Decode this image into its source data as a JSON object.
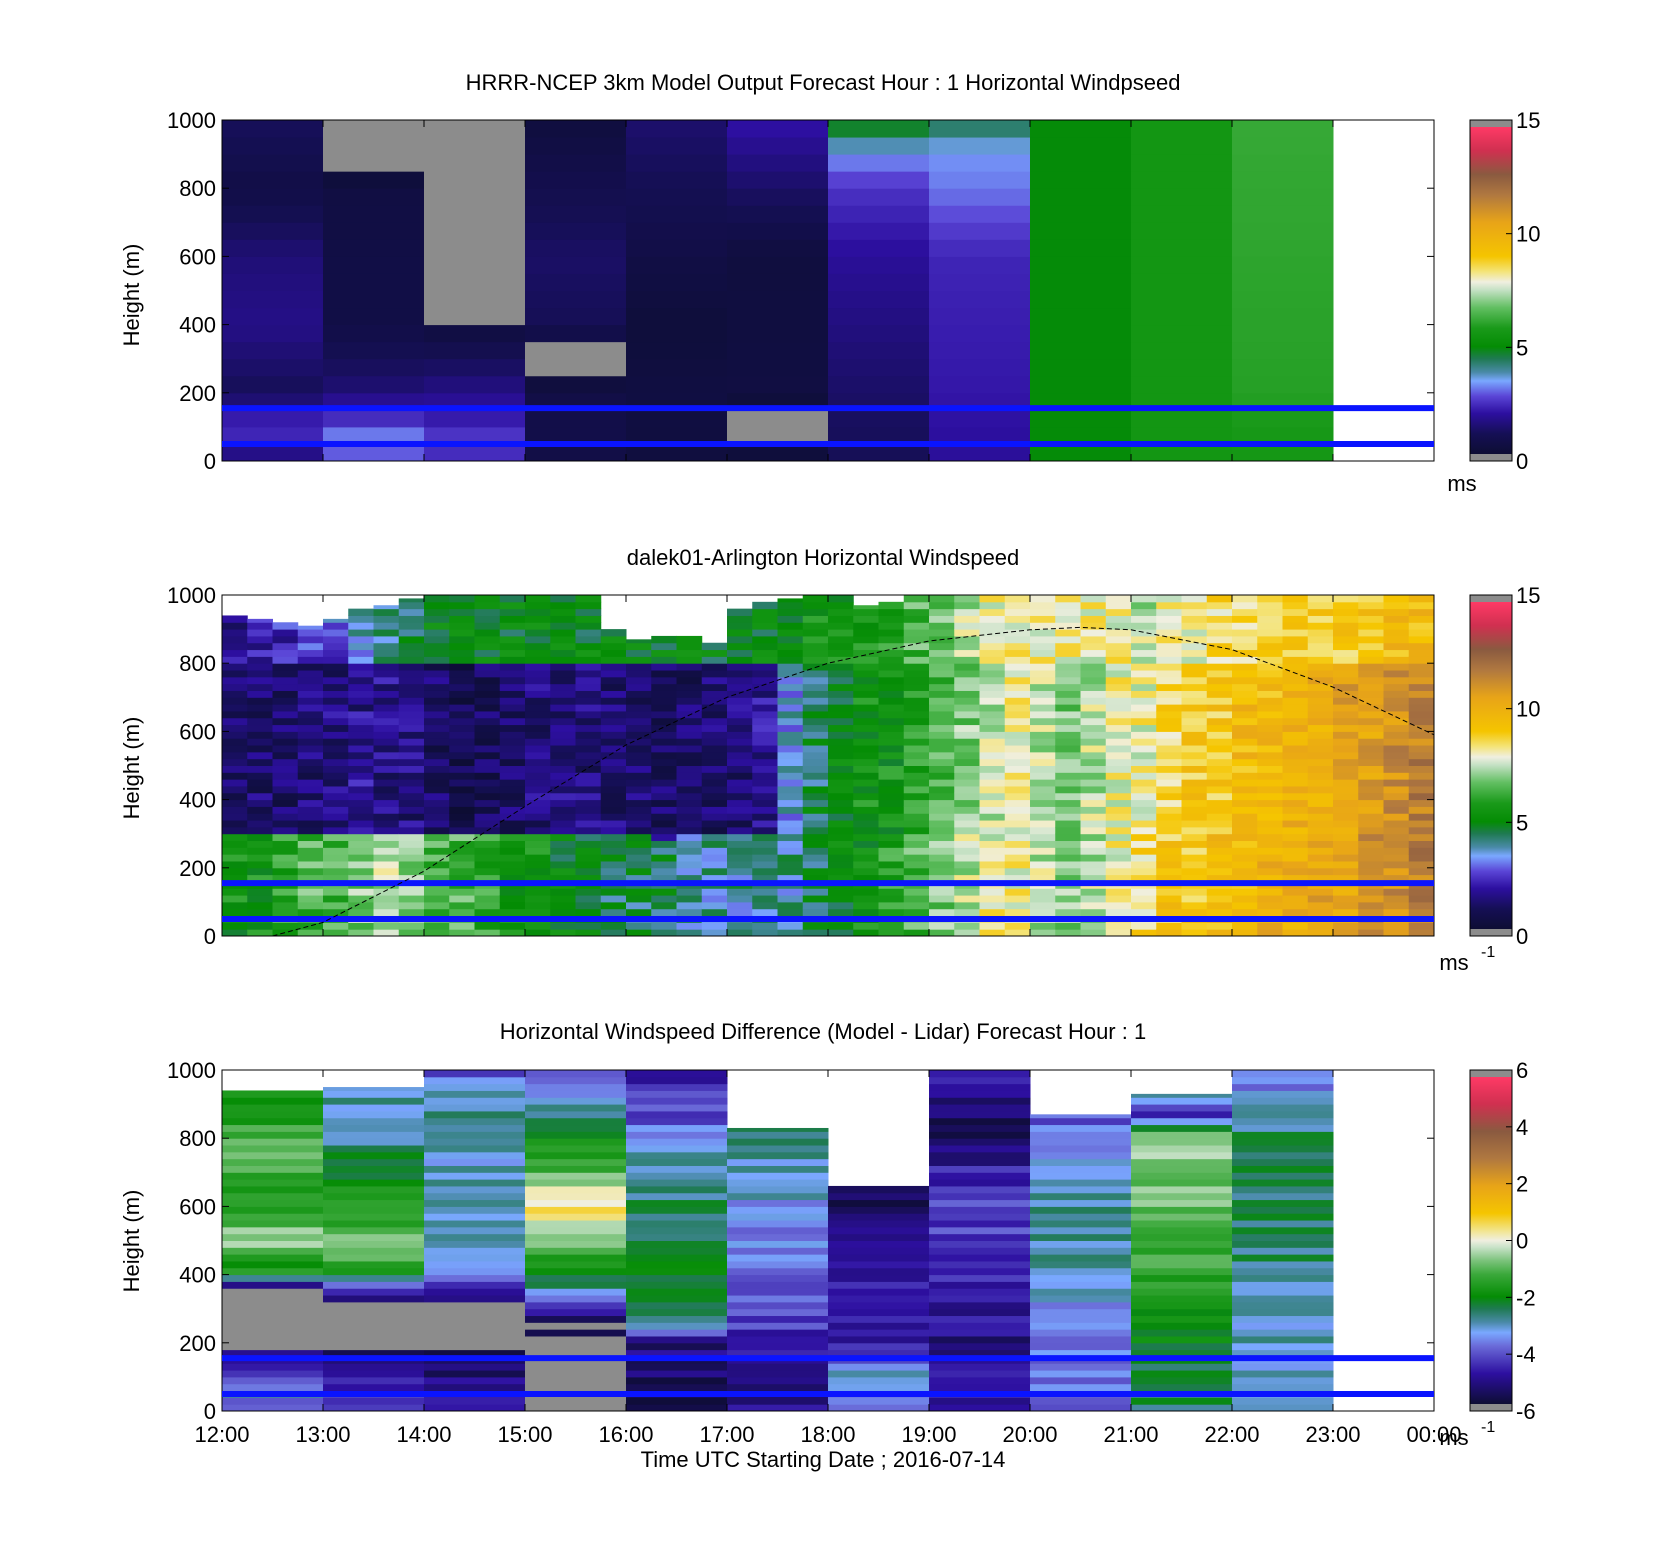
{
  "shared": {
    "ylabel": "Height (m)",
    "xlabel": "Time UTC  Starting Date ; 2016-07-14",
    "x_ticks": [
      "12:00",
      "13:00",
      "14:00",
      "15:00",
      "16:00",
      "17:00",
      "18:00",
      "19:00",
      "20:00",
      "21:00",
      "22:00",
      "23:00",
      "00:00"
    ],
    "y_ticks": [
      "0",
      "200",
      "400",
      "600",
      "800",
      "1000"
    ],
    "reference_lines_m": [
      50,
      155
    ],
    "reference_line_color": "#0a14ff"
  },
  "chart_data": [
    {
      "type": "heatmap",
      "title": "HRRR-NCEP 3km Model Output   Forecast Hour : 1 Horizontal Windpseed",
      "xlabel": "",
      "ylabel": "Height (m)",
      "xlim_hours": [
        12,
        24
      ],
      "ylim": [
        0,
        1000
      ],
      "colorbar": {
        "ticks": [
          "0",
          "5",
          "10",
          "15"
        ],
        "range": [
          0,
          15
        ],
        "unit": "ms",
        "unit_sup": ""
      },
      "hourly_profiles_ms": [
        {
          "hour": "12:00",
          "speed_by_height": [
            [
              0,
              1.4
            ],
            [
              50,
              2.2
            ],
            [
              100,
              2.6
            ],
            [
              200,
              1.2
            ],
            [
              400,
              1.8
            ],
            [
              600,
              1.6
            ],
            [
              800,
              0.8
            ],
            [
              1000,
              1.3
            ]
          ]
        },
        {
          "hour": "13:00",
          "speed_by_height": [
            [
              0,
              2.4
            ],
            [
              50,
              3.6
            ],
            [
              100,
              2.8
            ],
            [
              200,
              1.6
            ],
            [
              400,
              0.8
            ],
            [
              600,
              0.8
            ],
            [
              800,
              0.7
            ],
            [
              900,
              0.0
            ]
          ]
        },
        {
          "hour": "14:00",
          "speed_by_height": [
            [
              0,
              2.2
            ],
            [
              50,
              2.8
            ],
            [
              100,
              2.4
            ],
            [
              200,
              1.8
            ],
            [
              400,
              0.6
            ],
            [
              450,
              0.0
            ],
            [
              1000,
              0.0
            ]
          ]
        },
        {
          "hour": "15:00",
          "speed_by_height": [
            [
              0,
              0.8
            ],
            [
              100,
              0.9
            ],
            [
              200,
              0.8
            ],
            [
              300,
              0.0
            ],
            [
              400,
              1.2
            ],
            [
              600,
              1.4
            ],
            [
              1000,
              0.6
            ]
          ]
        },
        {
          "hour": "16:00",
          "speed_by_height": [
            [
              0,
              0.6
            ],
            [
              200,
              0.7
            ],
            [
              400,
              0.5
            ],
            [
              600,
              0.8
            ],
            [
              1000,
              1.5
            ]
          ]
        },
        {
          "hour": "17:00",
          "speed_by_height": [
            [
              0,
              0.7
            ],
            [
              100,
              0.0
            ],
            [
              200,
              0.7
            ],
            [
              600,
              0.6
            ],
            [
              1000,
              2.2
            ]
          ]
        },
        {
          "hour": "18:00",
          "speed_by_height": [
            [
              0,
              1.2
            ],
            [
              200,
              1.4
            ],
            [
              600,
              2.0
            ],
            [
              800,
              2.6
            ],
            [
              900,
              3.4
            ],
            [
              1000,
              5.2
            ]
          ]
        },
        {
          "hour": "19:00",
          "speed_by_height": [
            [
              0,
              2.0
            ],
            [
              200,
              2.2
            ],
            [
              600,
              2.4
            ],
            [
              800,
              3.2
            ],
            [
              900,
              3.4
            ],
            [
              1000,
              4.6
            ]
          ]
        },
        {
          "hour": "20:00",
          "speed_by_height": [
            [
              0,
              5.0
            ],
            [
              1000,
              5.0
            ]
          ]
        },
        {
          "hour": "21:00",
          "speed_by_height": [
            [
              0,
              5.6
            ],
            [
              1000,
              5.6
            ]
          ]
        },
        {
          "hour": "22:00",
          "speed_by_height": [
            [
              0,
              5.6
            ],
            [
              200,
              6.0
            ],
            [
              1000,
              6.2
            ]
          ]
        },
        {
          "hour": "23:00",
          "speed_by_height": []
        }
      ]
    },
    {
      "type": "heatmap",
      "title": "dalek01-Arlington  Horizontal Windspeed",
      "xlabel": "",
      "ylabel": "Height (m)",
      "xlim_hours": [
        12,
        24
      ],
      "ylim": [
        0,
        1000
      ],
      "colorbar": {
        "ticks": [
          "0",
          "5",
          "10",
          "15"
        ],
        "range": [
          0,
          15
        ],
        "unit": "ms",
        "unit_sup": "-1"
      },
      "time_step_hours": 0.25,
      "max_height_m": [
        940,
        930,
        920,
        910,
        930,
        960,
        970,
        990,
        1000,
        1000,
        1000,
        1000,
        1000,
        1000,
        1000,
        900,
        870,
        880,
        880,
        860,
        960,
        980,
        990,
        1000,
        1000,
        970,
        980,
        1000,
        1000,
        1000,
        1000,
        1000,
        1000,
        1000,
        1000,
        1000,
        1000,
        1000,
        1000,
        1000,
        1000,
        1000,
        1000,
        1000,
        1000,
        1000,
        1000,
        1000
      ],
      "mixed_layer_top_m": [
        380,
        370,
        360,
        350,
        340,
        330,
        330,
        340,
        350,
        360,
        380,
        400,
        380,
        360,
        340,
        320,
        300,
        290,
        300,
        320,
        350,
        400,
        500,
        700,
        800,
        850,
        900,
        950,
        1000,
        1000,
        1000,
        1000,
        1000,
        1000,
        1000,
        1000,
        1000,
        1000,
        1000,
        1000,
        1000,
        1000,
        1000,
        1000,
        1000,
        1000,
        1000,
        1000
      ],
      "windspeed_ms_by_time": {
        "surface_layer_0_300m": [
          5.5,
          5.5,
          6,
          6.5,
          6.5,
          7,
          7.5,
          7,
          6.5,
          6.5,
          6,
          5.5,
          5.5,
          5,
          5,
          4.5,
          4.5,
          4.5,
          4,
          4,
          4,
          4,
          4,
          4.5,
          5,
          5.5,
          6,
          6.5,
          7,
          7.5,
          8,
          8,
          7.5,
          7,
          7.5,
          8,
          8.5,
          9,
          9,
          9.5,
          9.5,
          10,
          10,
          10.5,
          10.5,
          11,
          11,
          11.5
        ],
        "mid_layer_300_800m": [
          1.5,
          1.4,
          1.3,
          1.5,
          1.7,
          1.9,
          1.8,
          1.6,
          1.3,
          1.1,
          1.2,
          1.4,
          1.6,
          1.7,
          1.6,
          1.5,
          1.4,
          1.3,
          1.3,
          1.4,
          1.5,
          2,
          3.5,
          4.5,
          5,
          5.5,
          5.5,
          6,
          6.5,
          7,
          7.5,
          8,
          7.5,
          7,
          7.5,
          8,
          8,
          8.5,
          9,
          9,
          9.5,
          9.5,
          10,
          10,
          10.5,
          10.5,
          11,
          11.5
        ],
        "upper_layer_800_1000m": [
          2,
          2.2,
          2.4,
          2.6,
          3,
          3.5,
          4,
          4.5,
          5,
          5,
          5,
          5,
          5,
          5,
          5,
          5,
          5,
          5,
          5,
          5,
          5,
          5,
          5,
          5.5,
          5.5,
          5.5,
          6,
          6.5,
          7,
          7.5,
          8,
          8,
          8,
          8,
          8,
          8,
          7.5,
          8,
          8,
          8.5,
          8.5,
          9,
          9,
          9,
          9,
          9,
          9.5,
          9.5
        ]
      },
      "annotation_curve": {
        "style": "dashed",
        "points_hours_m": [
          [
            12.5,
            0
          ],
          [
            13,
            40
          ],
          [
            14,
            190
          ],
          [
            15,
            380
          ],
          [
            16,
            560
          ],
          [
            17,
            700
          ],
          [
            18,
            800
          ],
          [
            19,
            865
          ],
          [
            20,
            898
          ],
          [
            20.5,
            905
          ],
          [
            21,
            898
          ],
          [
            22,
            840
          ],
          [
            23,
            730
          ],
          [
            24,
            590
          ]
        ]
      }
    },
    {
      "type": "heatmap",
      "title": "Horizontal Windspeed Difference (Model - Lidar) Forecast Hour : 1",
      "xlabel": "Time UTC  Starting Date ; 2016-07-14",
      "ylabel": "Height (m)",
      "xlim_hours": [
        12,
        24
      ],
      "ylim": [
        0,
        1000
      ],
      "colorbar": {
        "ticks": [
          "-6",
          "-4",
          "-2",
          "0",
          "2",
          "4",
          "6"
        ],
        "range": [
          -6,
          6
        ],
        "unit": "ms",
        "unit_sup": "-1"
      },
      "hourly_profiles_ms": [
        {
          "hour": "12:00",
          "top_m": 940,
          "diff_by_height": [
            [
              0,
              -4.5
            ],
            [
              50,
              -3
            ],
            [
              150,
              -4.5
            ],
            [
              200,
              -6.5
            ],
            [
              320,
              -6.5
            ],
            [
              360,
              -5.5
            ],
            [
              400,
              -2
            ],
            [
              500,
              -0.5
            ],
            [
              600,
              -1.5
            ],
            [
              800,
              -1
            ],
            [
              900,
              -2
            ]
          ]
        },
        {
          "hour": "13:00",
          "top_m": 950,
          "diff_by_height": [
            [
              0,
              -4
            ],
            [
              100,
              -4.5
            ],
            [
              180,
              -5.5
            ],
            [
              200,
              -6.5
            ],
            [
              300,
              -6.5
            ],
            [
              340,
              -5
            ],
            [
              400,
              -2.5
            ],
            [
              450,
              -0.5
            ],
            [
              600,
              -1.5
            ],
            [
              800,
              -2.8
            ],
            [
              950,
              -3
            ]
          ]
        },
        {
          "hour": "14:00",
          "top_m": 1000,
          "diff_by_height": [
            [
              0,
              -4.5
            ],
            [
              100,
              -5
            ],
            [
              180,
              -5.5
            ],
            [
              200,
              -6.5
            ],
            [
              300,
              -6.5
            ],
            [
              340,
              -5
            ],
            [
              400,
              -3
            ],
            [
              600,
              -3
            ],
            [
              800,
              -3
            ],
            [
              900,
              -2.8
            ],
            [
              1000,
              -4
            ]
          ]
        },
        {
          "hour": "15:00",
          "top_m": 1000,
          "diff_by_height": [
            [
              0,
              -6.5
            ],
            [
              200,
              -6.5
            ],
            [
              250,
              -5.5
            ],
            [
              300,
              -4.5
            ],
            [
              350,
              -3
            ],
            [
              450,
              -1.5
            ],
            [
              600,
              0.5
            ],
            [
              700,
              -1
            ],
            [
              900,
              -3
            ],
            [
              1000,
              -4
            ]
          ]
        },
        {
          "hour": "16:00",
          "top_m": 1000,
          "diff_by_height": [
            [
              0,
              -5.5
            ],
            [
              200,
              -5
            ],
            [
              250,
              -3
            ],
            [
              400,
              -2
            ],
            [
              600,
              -2.5
            ],
            [
              800,
              -3
            ],
            [
              850,
              -4
            ],
            [
              1000,
              -4.5
            ]
          ]
        },
        {
          "hour": "17:00",
          "top_m": 830,
          "diff_by_height": [
            [
              0,
              -5
            ],
            [
              200,
              -4.5
            ],
            [
              300,
              -4
            ],
            [
              500,
              -3.5
            ],
            [
              700,
              -3
            ],
            [
              830,
              -2.5
            ]
          ]
        },
        {
          "hour": "18:00",
          "top_m": 660,
          "diff_by_height": [
            [
              0,
              -3.5
            ],
            [
              100,
              -3
            ],
            [
              200,
              -4.5
            ],
            [
              400,
              -4.5
            ],
            [
              550,
              -5
            ],
            [
              660,
              -5.5
            ]
          ]
        },
        {
          "hour": "19:00",
          "top_m": 1000,
          "diff_by_height": [
            [
              0,
              -4.5
            ],
            [
              200,
              -5
            ],
            [
              400,
              -4.5
            ],
            [
              600,
              -4
            ],
            [
              700,
              -4.5
            ],
            [
              800,
              -5.5
            ],
            [
              1000,
              -4.5
            ]
          ]
        },
        {
          "hour": "20:00",
          "top_m": 870,
          "diff_by_height": [
            [
              0,
              -3.8
            ],
            [
              200,
              -3.5
            ],
            [
              400,
              -3
            ],
            [
              600,
              -2.8
            ],
            [
              800,
              -3.5
            ],
            [
              870,
              -4
            ]
          ]
        },
        {
          "hour": "21:00",
          "top_m": 930,
          "diff_by_height": [
            [
              0,
              -2.5
            ],
            [
              200,
              -2
            ],
            [
              500,
              -1
            ],
            [
              800,
              -0.5
            ],
            [
              880,
              -5
            ],
            [
              930,
              -2.5
            ]
          ]
        },
        {
          "hour": "22:00",
          "top_m": 1000,
          "diff_by_height": [
            [
              0,
              -3
            ],
            [
              200,
              -3
            ],
            [
              500,
              -2.5
            ],
            [
              800,
              -2.5
            ],
            [
              950,
              -3.5
            ],
            [
              1000,
              -4
            ]
          ]
        },
        {
          "hour": "23:00",
          "top_m": 0,
          "diff_by_height": []
        }
      ]
    }
  ]
}
